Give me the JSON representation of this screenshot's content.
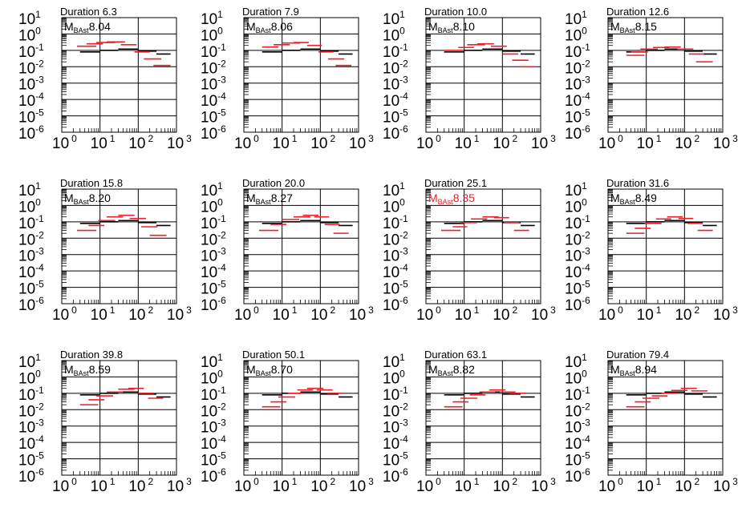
{
  "colors": {
    "red": "#e8202a",
    "black": "#000000"
  },
  "chart_data": {
    "type": "scatter",
    "title_prefix": "Duration",
    "magnitude_symbol": "M",
    "magnitude_subscript": "BAst",
    "xscale": "log",
    "yscale": "log",
    "xlim": [
      1,
      1000
    ],
    "ylim": [
      1e-06,
      10
    ],
    "grid": true,
    "x_ticks": [
      {
        "base": "10",
        "exp": "0"
      },
      {
        "base": "10",
        "exp": "1"
      },
      {
        "base": "10",
        "exp": "2"
      },
      {
        "base": "10",
        "exp": "3"
      }
    ],
    "y_ticks": [
      {
        "base": "10",
        "exp": "1"
      },
      {
        "base": "10",
        "exp": "0"
      },
      {
        "base": "10",
        "exp": "-1"
      },
      {
        "base": "10",
        "exp": "-2"
      },
      {
        "base": "10",
        "exp": "-3"
      },
      {
        "base": "10",
        "exp": "-4"
      },
      {
        "base": "10",
        "exp": "-5"
      },
      {
        "base": "10",
        "exp": "-6"
      }
    ],
    "panels": [
      {
        "duration": "6.3",
        "magnitude": "8.04",
        "black": [
          [
            3,
            10,
            0.08
          ],
          [
            10,
            30,
            0.1
          ],
          [
            30,
            100,
            0.12
          ],
          [
            100,
            300,
            0.09
          ],
          [
            300,
            700,
            0.06
          ]
        ],
        "red": [
          [
            2.5,
            8,
            0.18
          ],
          [
            4.5,
            12,
            0.25
          ],
          [
            8,
            25,
            0.3
          ],
          [
            15,
            45,
            0.33
          ],
          [
            35,
            90,
            0.22
          ],
          [
            80,
            200,
            0.08
          ],
          [
            140,
            400,
            0.03
          ],
          [
            250,
            700,
            0.012
          ]
        ]
      },
      {
        "duration": "7.9",
        "magnitude": "8.06",
        "black": [
          [
            3,
            10,
            0.08
          ],
          [
            10,
            30,
            0.1
          ],
          [
            30,
            100,
            0.12
          ],
          [
            100,
            300,
            0.09
          ],
          [
            300,
            700,
            0.06
          ]
        ],
        "red": [
          [
            3,
            8,
            0.16
          ],
          [
            6,
            16,
            0.22
          ],
          [
            10,
            30,
            0.28
          ],
          [
            20,
            50,
            0.3
          ],
          [
            45,
            110,
            0.2
          ],
          [
            90,
            220,
            0.08
          ],
          [
            160,
            420,
            0.03
          ],
          [
            250,
            650,
            0.012
          ]
        ]
      },
      {
        "duration": "10.0",
        "magnitude": "8.10",
        "black": [
          [
            3,
            10,
            0.08
          ],
          [
            10,
            30,
            0.1
          ],
          [
            30,
            100,
            0.12
          ],
          [
            100,
            300,
            0.09
          ],
          [
            300,
            700,
            0.06
          ]
        ],
        "red": [
          [
            3,
            9,
            0.1
          ],
          [
            7,
            18,
            0.15
          ],
          [
            12,
            35,
            0.22
          ],
          [
            22,
            60,
            0.25
          ],
          [
            50,
            130,
            0.18
          ],
          [
            100,
            260,
            0.06
          ],
          [
            180,
            480,
            0.025
          ],
          [
            280,
            700,
            0.01
          ]
        ]
      },
      {
        "duration": "12.6",
        "magnitude": "8.15",
        "black": [
          [
            3,
            10,
            0.08
          ],
          [
            10,
            30,
            0.1
          ],
          [
            30,
            100,
            0.12
          ],
          [
            100,
            300,
            0.09
          ],
          [
            300,
            700,
            0.06
          ]
        ],
        "red": [
          [
            3,
            9,
            0.05
          ],
          [
            4,
            11,
            0.08
          ],
          [
            7,
            20,
            0.12
          ],
          [
            15,
            40,
            0.15
          ],
          [
            30,
            80,
            0.16
          ],
          [
            65,
            170,
            0.12
          ],
          [
            130,
            330,
            0.06
          ],
          [
            200,
            550,
            0.02
          ]
        ]
      },
      {
        "duration": "15.8",
        "magnitude": "8.20",
        "black": [
          [
            3,
            10,
            0.08
          ],
          [
            10,
            30,
            0.1
          ],
          [
            30,
            100,
            0.12
          ],
          [
            100,
            300,
            0.09
          ],
          [
            300,
            700,
            0.06
          ]
        ],
        "red": [
          [
            2.5,
            8,
            0.03
          ],
          [
            5,
            13,
            0.06
          ],
          [
            9,
            25,
            0.12
          ],
          [
            15,
            40,
            0.2
          ],
          [
            30,
            80,
            0.25
          ],
          [
            60,
            160,
            0.16
          ],
          [
            120,
            320,
            0.05
          ],
          [
            200,
            550,
            0.015
          ]
        ]
      },
      {
        "duration": "20.0",
        "magnitude": "8.27",
        "black": [
          [
            3,
            10,
            0.08
          ],
          [
            10,
            30,
            0.1
          ],
          [
            30,
            100,
            0.12
          ],
          [
            100,
            300,
            0.09
          ],
          [
            300,
            700,
            0.06
          ]
        ],
        "red": [
          [
            2.5,
            8,
            0.03
          ],
          [
            5,
            13,
            0.07
          ],
          [
            10,
            28,
            0.14
          ],
          [
            20,
            55,
            0.2
          ],
          [
            35,
            90,
            0.25
          ],
          [
            70,
            170,
            0.2
          ],
          [
            130,
            320,
            0.07
          ],
          [
            220,
            550,
            0.02
          ]
        ]
      },
      {
        "duration": "25.1",
        "magnitude": "8.35",
        "black": [
          [
            3,
            10,
            0.08
          ],
          [
            10,
            30,
            0.1
          ],
          [
            30,
            100,
            0.12
          ],
          [
            100,
            300,
            0.09
          ],
          [
            300,
            700,
            0.06
          ]
        ],
        "red": [
          [
            2.5,
            8,
            0.03
          ],
          [
            5,
            12,
            0.05
          ],
          [
            8,
            22,
            0.09
          ],
          [
            15,
            40,
            0.15
          ],
          [
            30,
            80,
            0.2
          ],
          [
            60,
            150,
            0.18
          ],
          [
            110,
            280,
            0.09
          ],
          [
            200,
            500,
            0.03
          ]
        ]
      },
      {
        "duration": "31.6",
        "magnitude": "8.49",
        "black": [
          [
            3,
            10,
            0.08
          ],
          [
            10,
            30,
            0.1
          ],
          [
            30,
            100,
            0.12
          ],
          [
            100,
            300,
            0.09
          ],
          [
            300,
            700,
            0.06
          ]
        ],
        "red": [
          [
            3,
            9,
            0.02
          ],
          [
            5,
            13,
            0.04
          ],
          [
            9,
            25,
            0.08
          ],
          [
            18,
            45,
            0.15
          ],
          [
            35,
            90,
            0.2
          ],
          [
            70,
            170,
            0.16
          ],
          [
            120,
            300,
            0.08
          ],
          [
            220,
            550,
            0.03
          ]
        ]
      },
      {
        "duration": "39.8",
        "magnitude": "8.59",
        "black": [
          [
            3,
            10,
            0.08
          ],
          [
            10,
            30,
            0.1
          ],
          [
            30,
            100,
            0.12
          ],
          [
            100,
            300,
            0.09
          ],
          [
            300,
            700,
            0.06
          ]
        ],
        "red": [
          [
            3,
            9,
            0.02
          ],
          [
            5,
            13,
            0.04
          ],
          [
            8,
            22,
            0.07
          ],
          [
            15,
            40,
            0.12
          ],
          [
            30,
            80,
            0.18
          ],
          [
            55,
            140,
            0.2
          ],
          [
            100,
            260,
            0.1
          ],
          [
            180,
            450,
            0.05
          ]
        ]
      },
      {
        "duration": "50.1",
        "magnitude": "8.70",
        "black": [
          [
            3,
            10,
            0.08
          ],
          [
            10,
            30,
            0.1
          ],
          [
            30,
            100,
            0.12
          ],
          [
            100,
            300,
            0.09
          ],
          [
            300,
            700,
            0.06
          ]
        ],
        "red": [
          [
            3,
            9,
            0.015
          ],
          [
            5,
            13,
            0.03
          ],
          [
            8,
            22,
            0.06
          ],
          [
            14,
            36,
            0.1
          ],
          [
            25,
            65,
            0.16
          ],
          [
            45,
            120,
            0.2
          ],
          [
            80,
            210,
            0.16
          ],
          [
            150,
            400,
            0.1
          ]
        ]
      },
      {
        "duration": "63.1",
        "magnitude": "8.82",
        "black": [
          [
            3,
            10,
            0.08
          ],
          [
            10,
            30,
            0.1
          ],
          [
            30,
            100,
            0.12
          ],
          [
            100,
            300,
            0.09
          ],
          [
            300,
            700,
            0.06
          ]
        ],
        "red": [
          [
            3,
            9,
            0.015
          ],
          [
            5,
            13,
            0.03
          ],
          [
            8,
            22,
            0.05
          ],
          [
            14,
            36,
            0.08
          ],
          [
            25,
            65,
            0.12
          ],
          [
            45,
            120,
            0.16
          ],
          [
            85,
            220,
            0.12
          ],
          [
            150,
            400,
            0.1
          ]
        ]
      },
      {
        "duration": "79.4",
        "magnitude": "8.94",
        "black": [
          [
            3,
            10,
            0.08
          ],
          [
            10,
            30,
            0.1
          ],
          [
            30,
            100,
            0.12
          ],
          [
            100,
            300,
            0.09
          ],
          [
            300,
            700,
            0.06
          ]
        ],
        "red": [
          [
            3,
            9,
            0.015
          ],
          [
            5,
            13,
            0.03
          ],
          [
            8,
            22,
            0.05
          ],
          [
            14,
            36,
            0.07
          ],
          [
            25,
            65,
            0.1
          ],
          [
            45,
            120,
            0.15
          ],
          [
            80,
            210,
            0.2
          ],
          [
            150,
            400,
            0.14
          ]
        ]
      }
    ],
    "highlighted_panel": "25.1"
  }
}
